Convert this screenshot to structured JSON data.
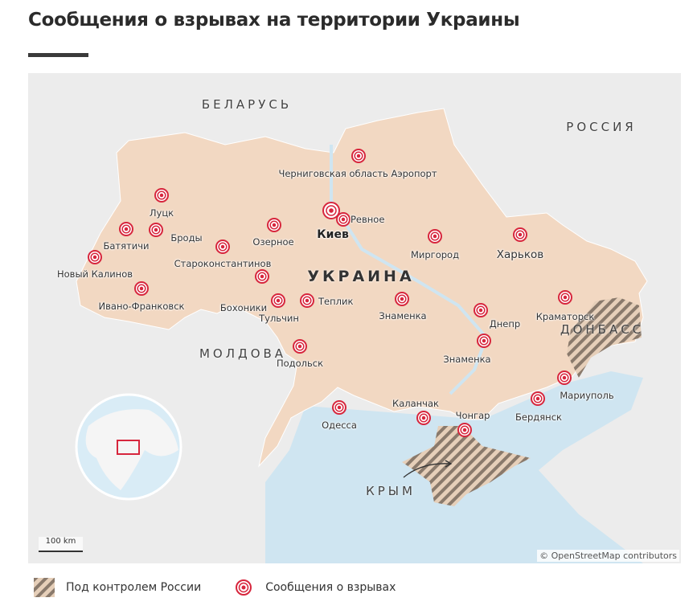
{
  "title": "Сообщения о взрывах на территории Украины",
  "map": {
    "countries": {
      "belarus": "БЕЛАРУСЬ",
      "russia": "РОССИЯ",
      "moldova": "МОЛДОВА",
      "ukraine": "УКРАИНА",
      "donbass": "ДОНБАСС",
      "crimea": "КРЫМ"
    },
    "places": [
      "Черниговская область Аэропорт",
      "Луцк",
      "Батятичи",
      "Броды",
      "Новый Калинов",
      "Ивано-Франковск",
      "Староконстантинов",
      "Озерное",
      "Киев",
      "Ревное",
      "Бохоники",
      "Тульчин",
      "Теплик",
      "Подольск",
      "Миргород",
      "Харьков",
      "Знаменка",
      "Днепр",
      "Знаменка",
      "Краматорск",
      "Мариуполь",
      "Бердянск",
      "Одесса",
      "Каланчак",
      "Чонгар"
    ],
    "scale_label": "100 km",
    "attribution": "© OpenStreetMap contributors",
    "colors": {
      "ukraine": "#f2d8c2",
      "land": "#ececec",
      "sea": "#cfe5f1",
      "marker": "#d7263d",
      "hatch": "#8a7a6c"
    }
  },
  "legend": {
    "russia_control": "Под контролем России",
    "explosions": "Сообщения о взрывах"
  }
}
